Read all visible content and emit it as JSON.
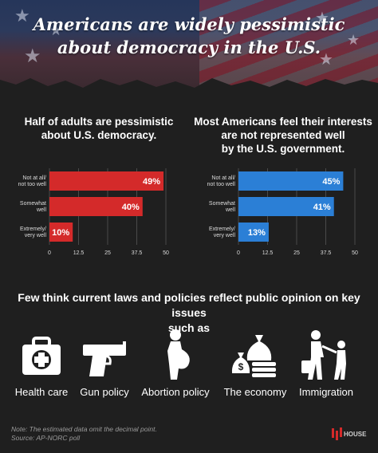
{
  "headline": {
    "line1": "Americans are widely pessimistic",
    "line2": "about democracy in the U.S."
  },
  "chart_data": [
    {
      "type": "bar",
      "orientation": "horizontal",
      "title_lines": [
        "Half of adults are pessimistic",
        "about U.S. democracy."
      ],
      "categories": [
        [
          "Not at all/",
          "not too well"
        ],
        [
          "Somewhat",
          "well"
        ],
        [
          "Extremely/",
          "very well"
        ]
      ],
      "values": [
        49,
        40,
        10
      ],
      "value_labels": [
        "49%",
        "40%",
        "10%"
      ],
      "xlim": [
        0,
        50
      ],
      "xticks": [
        "0",
        "12.5",
        "25",
        "37.5",
        "50"
      ],
      "color": "#d42a2a",
      "grid": true
    },
    {
      "type": "bar",
      "orientation": "horizontal",
      "title_lines": [
        "Most Americans feel their interests",
        "are not represented well",
        "by the U.S. government."
      ],
      "categories": [
        [
          "Not at all/",
          "not too well"
        ],
        [
          "Somewhat",
          "well"
        ],
        [
          "Extremely/",
          "very well"
        ]
      ],
      "values": [
        45,
        41,
        13
      ],
      "value_labels": [
        "45%",
        "41%",
        "13%"
      ],
      "xlim": [
        0,
        50
      ],
      "xticks": [
        "0",
        "12.5",
        "25",
        "37.5",
        "50"
      ],
      "color": "#2b7fd6",
      "grid": true
    }
  ],
  "issues": {
    "title_line1": "Few think current laws and policies reflect public opinion on key issues",
    "title_line2": "such as",
    "items": [
      {
        "label": "Health care",
        "icon": "first-aid-kit-icon"
      },
      {
        "label": "Gun policy",
        "icon": "pistol-icon"
      },
      {
        "label": "Abortion policy",
        "icon": "pregnant-woman-icon"
      },
      {
        "label": "The economy",
        "icon": "money-bags-icon"
      },
      {
        "label": "Immigration",
        "icon": "family-walking-icon"
      }
    ]
  },
  "footer": {
    "note": "Note: The estimated data omit the decimal point.",
    "source": "Source: AP-NORC poll",
    "logo_text": "HOUSE"
  },
  "colors": {
    "accent_red": "#d42a2a",
    "accent_blue": "#2b7fd6",
    "background": "#1f1f1f"
  }
}
